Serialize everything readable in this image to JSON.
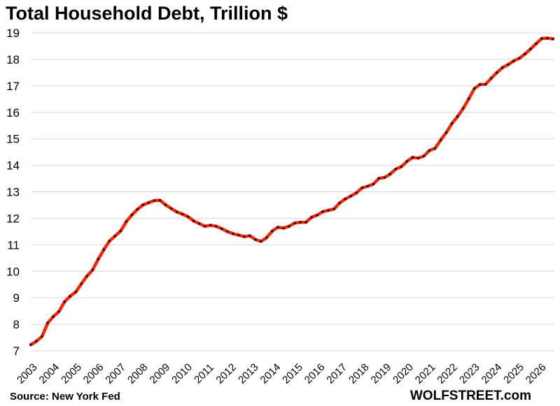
{
  "title": "Total Household Debt, Trillion $",
  "source": "Source: New York Fed",
  "brand": "WOLFSTREET.com",
  "colors": {
    "line": "#ff2200",
    "dots": "#1a1a1a",
    "grid": "#d9d9d9"
  },
  "chart_data": {
    "type": "line",
    "title": "Total Household Debt, Trillion $",
    "xlabel": "",
    "ylabel": "",
    "ylim": [
      7,
      19
    ],
    "yticks": [
      "7",
      "8",
      "9",
      "10",
      "11",
      "12",
      "13",
      "14",
      "15",
      "16",
      "17",
      "18",
      "19"
    ],
    "xticks": [
      "2003",
      "2004",
      "2005",
      "2006",
      "2007",
      "2008",
      "2009",
      "2010",
      "2011",
      "2012",
      "2013",
      "2014",
      "2015",
      "2016",
      "2017",
      "2018",
      "2019",
      "2020",
      "2021",
      "2022",
      "2023",
      "2024",
      "2025",
      "2026"
    ],
    "grid": true,
    "series": [
      {
        "values": [
          7.23,
          7.36,
          7.54,
          8.05,
          8.29,
          8.48,
          8.85,
          9.06,
          9.22,
          9.53,
          9.82,
          10.05,
          10.46,
          10.82,
          11.14,
          11.33,
          11.52,
          11.88,
          12.13,
          12.34,
          12.51,
          12.59,
          12.67,
          12.68,
          12.51,
          12.37,
          12.24,
          12.16,
          12.06,
          11.9,
          11.8,
          11.7,
          11.74,
          11.7,
          11.61,
          11.5,
          11.42,
          11.37,
          11.31,
          11.34,
          11.2,
          11.13,
          11.27,
          11.52,
          11.66,
          11.63,
          11.7,
          11.82,
          11.85,
          11.85,
          12.04,
          12.12,
          12.25,
          12.3,
          12.35,
          12.58,
          12.73,
          12.84,
          12.96,
          13.15,
          13.21,
          13.29,
          13.51,
          13.54,
          13.67,
          13.86,
          13.95,
          14.15,
          14.3,
          14.27,
          14.35,
          14.56,
          14.64,
          14.96,
          15.24,
          15.58,
          15.84,
          16.15,
          16.51,
          16.9,
          17.05,
          17.06,
          17.29,
          17.5,
          17.69,
          17.8,
          17.94,
          18.04,
          18.2,
          18.39,
          18.59,
          18.79,
          18.8,
          18.77
        ]
      }
    ]
  }
}
